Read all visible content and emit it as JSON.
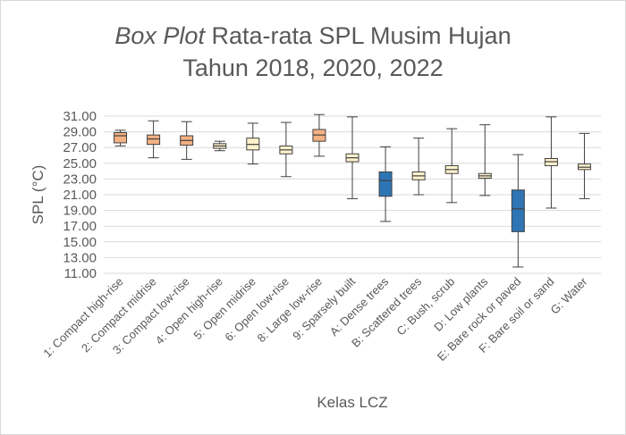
{
  "chart_data": {
    "type": "boxplot",
    "title_italic": "Box Plot",
    "title_rest": " Rata-rata SPL Musim Hujan",
    "title_line2": "Tahun 2018, 2020, 2022",
    "xlabel": "Kelas LCZ",
    "ylabel": "SPL (°C)",
    "ylim": [
      11,
      31
    ],
    "yticks": [
      "31.00",
      "29.00",
      "27.00",
      "25.00",
      "23.00",
      "21.00",
      "19.00",
      "17.00",
      "15.00",
      "13.00",
      "11.00"
    ],
    "grid": true,
    "colors": {
      "orange": "#f4b183",
      "yellow": "#fff2cc",
      "blue": "#2e75b6",
      "whisker": "#404040",
      "grid": "#d9d9d9"
    },
    "categories": [
      "1: Compact high-rise",
      "2: Compact midrise",
      "3: Compact low-rise",
      "4: Open high-rise",
      "5: Open midrise",
      "6: Open low-rise",
      "8: Large low-rise",
      "9: Sparsely built",
      "A: Dense trees",
      "B: Scattered trees",
      "C: Bush, scrub",
      "D: Low plants",
      "E: Bare rock or paved",
      "F: Bare soil or sand",
      "G: Water"
    ],
    "boxes": [
      {
        "min": 27.2,
        "q1": 27.6,
        "median": 28.5,
        "q3": 28.9,
        "max": 29.2,
        "color": "orange"
      },
      {
        "min": 25.7,
        "q1": 27.4,
        "median": 28.1,
        "q3": 28.6,
        "max": 30.4,
        "color": "orange"
      },
      {
        "min": 25.5,
        "q1": 27.3,
        "median": 27.9,
        "q3": 28.5,
        "max": 30.3,
        "color": "orange"
      },
      {
        "min": 26.6,
        "q1": 26.9,
        "median": 27.2,
        "q3": 27.5,
        "max": 27.8,
        "color": "yellow"
      },
      {
        "min": 24.9,
        "q1": 26.7,
        "median": 27.4,
        "q3": 28.2,
        "max": 30.1,
        "color": "yellow"
      },
      {
        "min": 23.3,
        "q1": 26.2,
        "median": 26.7,
        "q3": 27.2,
        "max": 30.2,
        "color": "yellow"
      },
      {
        "min": 25.9,
        "q1": 27.8,
        "median": 28.6,
        "q3": 29.3,
        "max": 31.2,
        "color": "orange"
      },
      {
        "min": 20.5,
        "q1": 25.2,
        "median": 25.7,
        "q3": 26.2,
        "max": 30.9,
        "color": "yellow"
      },
      {
        "min": 17.6,
        "q1": 20.8,
        "median": 22.8,
        "q3": 23.9,
        "max": 27.1,
        "color": "blue"
      },
      {
        "min": 21.0,
        "q1": 22.9,
        "median": 23.4,
        "q3": 23.9,
        "max": 28.2,
        "color": "yellow"
      },
      {
        "min": 20.0,
        "q1": 23.7,
        "median": 24.2,
        "q3": 24.7,
        "max": 29.4,
        "color": "yellow"
      },
      {
        "min": 20.9,
        "q1": 23.1,
        "median": 23.4,
        "q3": 23.7,
        "max": 29.9,
        "color": "yellow"
      },
      {
        "min": 11.8,
        "q1": 16.3,
        "median": 19.2,
        "q3": 21.6,
        "max": 26.1,
        "color": "blue"
      },
      {
        "min": 19.3,
        "q1": 24.7,
        "median": 25.2,
        "q3": 25.6,
        "max": 30.9,
        "color": "yellow"
      },
      {
        "min": 20.5,
        "q1": 24.2,
        "median": 24.5,
        "q3": 24.9,
        "max": 28.8,
        "color": "yellow"
      }
    ]
  }
}
